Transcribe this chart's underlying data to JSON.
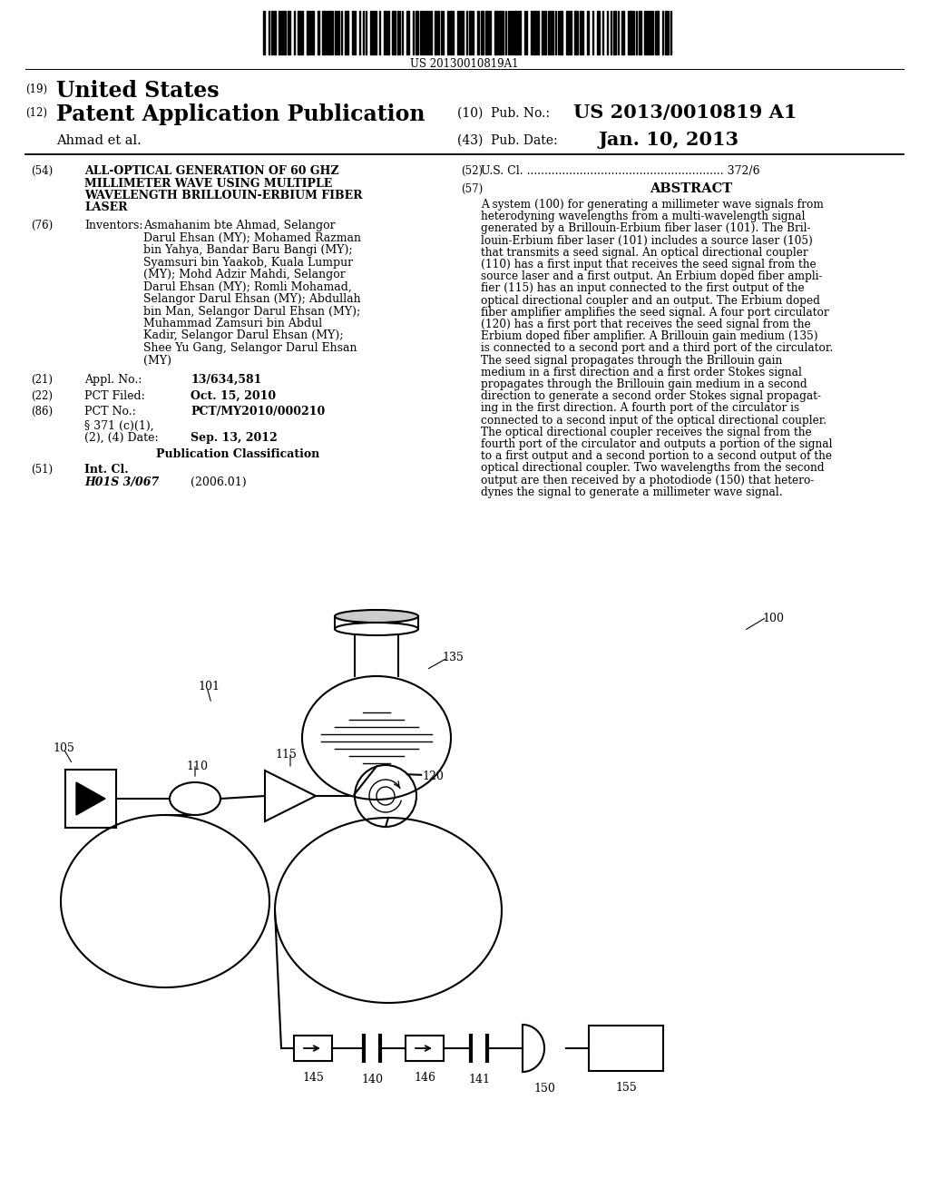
{
  "background_color": "#ffffff",
  "barcode_text": "US 20130010819A1",
  "title19": "(19) United States",
  "title12": "(12) Patent Application Publication",
  "pub_no_label": "(10) Pub. No.:",
  "pub_no": "US 2013/0010819 A1",
  "author": "Ahmad et al.",
  "pub_date_label": "(43) Pub. Date:",
  "pub_date": "Jan. 10, 2013",
  "field54_label": "(54)",
  "field54": "ALL-OPTICAL GENERATION OF 60 GHZ\nMILLIMETER WAVE USING MULTIPLE\nWAVELENGTH BRILLOUIN-ERBIUM FIBER\nLASER",
  "field52_label": "(52)",
  "field52": "U.S. Cl. ........................................................ 372/6",
  "field57_label": "(57)",
  "abstract_title": "ABSTRACT",
  "abstract_lines": [
    "A system (100) for generating a millimeter wave signals from",
    "heterodyning wavelengths from a multi-wavelength signal",
    "generated by a Brillouin-Erbium fiber laser (101). The Bril-",
    "louin-Erbium fiber laser (101) includes a source laser (105)",
    "that transmits a seed signal. An optical directional coupler",
    "(110) has a first input that receives the seed signal from the",
    "source laser and a first output. An Erbium doped fiber ampli-",
    "fier (115) has an input connected to the first output of the",
    "optical directional coupler and an output. The Erbium doped",
    "fiber amplifier amplifies the seed signal. A four port circulator",
    "(120) has a first port that receives the seed signal from the",
    "Erbium doped fiber amplifier. A Brillouin gain medium (135)",
    "is connected to a second port and a third port of the circulator.",
    "The seed signal propagates through the Brillouin gain",
    "medium in a first direction and a first order Stokes signal",
    "propagates through the Brillouin gain medium in a second",
    "direction to generate a second order Stokes signal propagat-",
    "ing in the first direction. A fourth port of the circulator is",
    "connected to a second input of the optical directional coupler.",
    "The optical directional coupler receives the signal from the",
    "fourth port of the circulator and outputs a portion of the signal",
    "to a first output and a second portion to a second output of the",
    "optical directional coupler. Two wavelengths from the second",
    "output are then received by a photodiode (150) that hetero-",
    "dynes the signal to generate a millimeter wave signal."
  ],
  "inventors_lines": [
    "Asmahanim bte Ahmad, Selangor",
    "Darul Ehsan (MY); Mohamed Razman",
    "bin Yahya, Bandar Baru Bangi (MY);",
    "Syamsuri bin Yaakob, Kuala Lumpur",
    "(MY); Mohd Adzir Mahdi, Selangor",
    "Darul Ehsan (MY); Romli Mohamad,",
    "Selangor Darul Ehsan (MY); Abdullah",
    "bin Man, Selangor Darul Ehsan (MY);",
    "Muhammad Zamsuri bin Abdul",
    "Kadir, Selangor Darul Ehsan (MY);",
    "Shee Yu Gang, Selangor Darul Ehsan",
    "(MY)"
  ],
  "appl_no": "13/634,581",
  "pct_filed": "Oct. 15, 2010",
  "pct_no": "PCT/MY2010/000210",
  "date_val": "Sep. 13, 2012",
  "int_cl": "H01S 3/067",
  "int_cl_date": "(2006.01)"
}
